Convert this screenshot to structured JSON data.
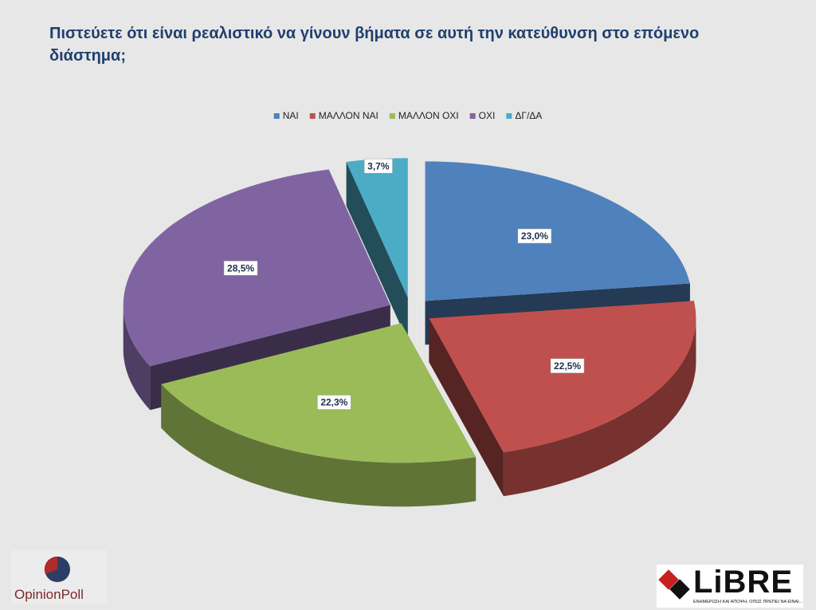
{
  "chart_data": {
    "type": "pie",
    "title": "Πιστεύετε ότι είναι ρεαλιστικό να γίνουν βήματα σε αυτή την κατεύθυνση στο επόμενο διάστημα;",
    "categories": [
      "ΝΑΙ",
      "ΜΑΛΛΟΝ ΝΑΙ",
      "ΜΑΛΛΟΝ ΟΧΙ",
      "ΟΧΙ",
      "ΔΓ/ΔΑ"
    ],
    "values": [
      23.0,
      22.5,
      22.3,
      28.5,
      3.7
    ],
    "value_labels": [
      "23,0%",
      "22,5%",
      "22,3%",
      "28,5%",
      "3,7%"
    ],
    "colors": [
      "#4f81bd",
      "#c0504d",
      "#9bbb59",
      "#8064a2",
      "#4bacc6"
    ],
    "legend": "top"
  },
  "logos": {
    "left": "OpinionPoll",
    "right": "LiBRE",
    "right_tagline": "ΕΝΗΜΕΡΩΣΗ ΚΑΙ ΑΠΟΨΗ, ΟΠΩΣ ΠΡΕΠΕΙ ΝΑ ΕΙΝΑΙ..."
  }
}
